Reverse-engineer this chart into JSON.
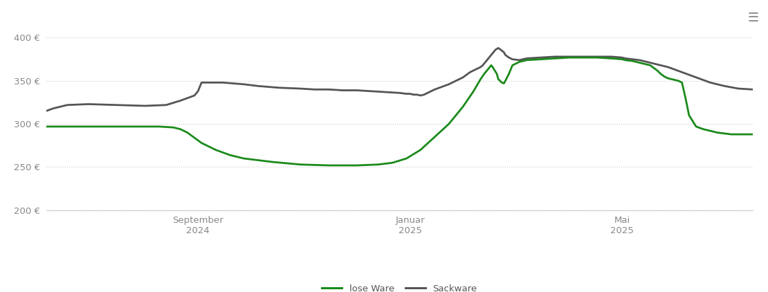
{
  "ylim": [
    200,
    420
  ],
  "yticks": [
    200,
    250,
    300,
    350,
    400
  ],
  "ytick_labels": [
    "200 €",
    "250 €",
    "300 €",
    "350 €",
    "400 €"
  ],
  "x_tick_positions": [
    0.215,
    0.515,
    0.815
  ],
  "x_tick_labels": [
    "September\n2024",
    "Januar\n2025",
    "Mai\n2025"
  ],
  "background_color": "#ffffff",
  "grid_color": "#cccccc",
  "line_green_color": "#1a8a1a",
  "line_dark_color": "#555555",
  "legend_green": "lose Ware",
  "legend_dark": "Sackware",
  "lose_ware_x": [
    0.0,
    0.04,
    0.08,
    0.12,
    0.16,
    0.18,
    0.19,
    0.2,
    0.21,
    0.22,
    0.24,
    0.26,
    0.28,
    0.32,
    0.36,
    0.4,
    0.44,
    0.47,
    0.49,
    0.51,
    0.53,
    0.55,
    0.57,
    0.59,
    0.605,
    0.615,
    0.62,
    0.625,
    0.628,
    0.63,
    0.632,
    0.635,
    0.638,
    0.64,
    0.645,
    0.648,
    0.65,
    0.655,
    0.66,
    0.67,
    0.68,
    0.7,
    0.72,
    0.74,
    0.76,
    0.78,
    0.8,
    0.815,
    0.82,
    0.83,
    0.84,
    0.855,
    0.865,
    0.87,
    0.875,
    0.88,
    0.89,
    0.895,
    0.9,
    0.905,
    0.91,
    0.92,
    0.93,
    0.95,
    0.97,
    1.0
  ],
  "lose_ware_y": [
    297,
    297,
    297,
    297,
    297,
    296,
    294,
    290,
    284,
    278,
    270,
    264,
    260,
    256,
    253,
    252,
    252,
    253,
    255,
    260,
    270,
    285,
    300,
    320,
    338,
    352,
    358,
    363,
    366,
    368,
    366,
    362,
    358,
    352,
    348,
    347,
    350,
    358,
    368,
    372,
    374,
    375,
    376,
    377,
    377,
    377,
    376,
    375,
    374,
    373,
    371,
    368,
    362,
    358,
    355,
    353,
    351,
    350,
    348,
    330,
    310,
    297,
    294,
    290,
    288,
    288
  ],
  "sackware_x": [
    0.0,
    0.01,
    0.03,
    0.06,
    0.1,
    0.14,
    0.17,
    0.19,
    0.2,
    0.21,
    0.215,
    0.22,
    0.25,
    0.28,
    0.3,
    0.33,
    0.36,
    0.38,
    0.4,
    0.42,
    0.44,
    0.46,
    0.48,
    0.5,
    0.51,
    0.515,
    0.52,
    0.525,
    0.53,
    0.535,
    0.54,
    0.545,
    0.55,
    0.56,
    0.57,
    0.58,
    0.59,
    0.6,
    0.605,
    0.61,
    0.615,
    0.618,
    0.62,
    0.622,
    0.624,
    0.626,
    0.628,
    0.63,
    0.632,
    0.634,
    0.636,
    0.638,
    0.64,
    0.642,
    0.645,
    0.648,
    0.65,
    0.655,
    0.66,
    0.67,
    0.68,
    0.7,
    0.72,
    0.74,
    0.76,
    0.78,
    0.8,
    0.815,
    0.82,
    0.84,
    0.86,
    0.88,
    0.9,
    0.92,
    0.94,
    0.96,
    0.98,
    1.0
  ],
  "sackware_y": [
    315,
    318,
    322,
    323,
    322,
    321,
    322,
    327,
    330,
    333,
    338,
    348,
    348,
    346,
    344,
    342,
    341,
    340,
    340,
    339,
    339,
    338,
    337,
    336,
    335,
    335,
    334,
    334,
    333,
    334,
    336,
    338,
    340,
    343,
    346,
    350,
    354,
    360,
    362,
    364,
    366,
    368,
    370,
    372,
    374,
    376,
    378,
    380,
    382,
    384,
    386,
    387,
    388,
    387,
    385,
    383,
    380,
    377,
    375,
    374,
    376,
    377,
    378,
    378,
    378,
    378,
    378,
    377,
    376,
    374,
    370,
    366,
    360,
    354,
    348,
    344,
    341,
    340
  ]
}
